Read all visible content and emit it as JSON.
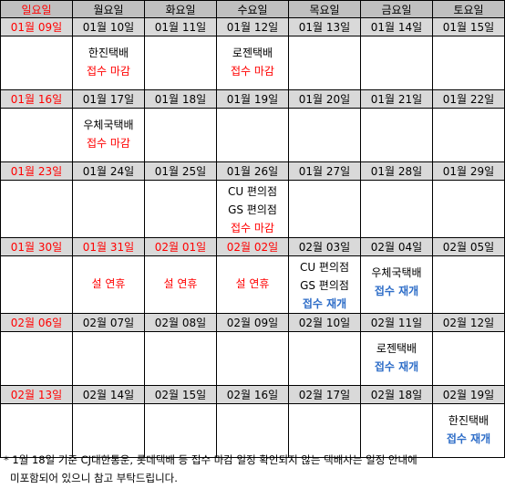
{
  "weekdays": [
    "일요일",
    "월요일",
    "화요일",
    "수요일",
    "목요일",
    "금요일",
    "토요일"
  ],
  "weeks": [
    {
      "dates": [
        "01월 09일",
        "01월 10일",
        "01월 11일",
        "01월 12일",
        "01월 13일",
        "01월 14일",
        "01월 15일"
      ],
      "notes": [
        [],
        [
          "한진택배",
          "접수 마감"
        ],
        [],
        [
          "로젠택배",
          "접수 마감"
        ],
        [],
        [],
        []
      ]
    },
    {
      "dates": [
        "01월 16일",
        "01월 17일",
        "01월 18일",
        "01월 19일",
        "01월 20일",
        "01월 21일",
        "01월 22일"
      ],
      "notes": [
        [],
        [
          "우체국택배",
          "접수 마감"
        ],
        [],
        [],
        [],
        [],
        []
      ]
    },
    {
      "dates": [
        "01월 23일",
        "01월 24일",
        "01월 25일",
        "01월 26일",
        "01월 27일",
        "01월 28일",
        "01월 29일"
      ],
      "notes": [
        [],
        [],
        [],
        [
          "CU 편의점",
          "GS 편의점",
          "접수 마감"
        ],
        [],
        [],
        []
      ]
    },
    {
      "dates": [
        "01월 30일",
        "01월 31일",
        "02월 01일",
        "02월 02일",
        "02월 03일",
        "02월 04일",
        "02월 05일"
      ],
      "notes": [
        [],
        [
          "설 연휴"
        ],
        [
          "설 연휴"
        ],
        [
          "설 연휴"
        ],
        [
          "CU 편의점",
          "GS 편의점",
          "접수 재개"
        ],
        [
          "우체국택배",
          "접수 재개"
        ],
        []
      ]
    },
    {
      "dates": [
        "02월 06일",
        "02월 07일",
        "02월 08일",
        "02월 09일",
        "02월 10일",
        "02월 11일",
        "02월 12일"
      ],
      "notes": [
        [],
        [],
        [],
        [],
        [],
        [
          "로젠택배",
          "접수 재개"
        ],
        []
      ]
    },
    {
      "dates": [
        "02월 13일",
        "02월 14일",
        "02월 15일",
        "02월 16일",
        "02월 17일",
        "02월 18일",
        "02월 19일"
      ],
      "notes": [
        [],
        [],
        [],
        [],
        [],
        [],
        [
          "한진택배",
          "접수 재개"
        ]
      ]
    }
  ],
  "footnote": {
    "line1": "* 1월 18일 기준 CJ대한통운, 롯데택배 등 접수 마감 일정 확인되지 않는 택배사는 일정 안내에",
    "line2": "미포함되어 있으니 참고 부탁드립니다."
  },
  "colors": {
    "holiday_red": "#ff0000",
    "resume_blue": "#2f6ec8",
    "header_gray": "#c0c0c0",
    "date_gray": "#d9d9d9"
  }
}
